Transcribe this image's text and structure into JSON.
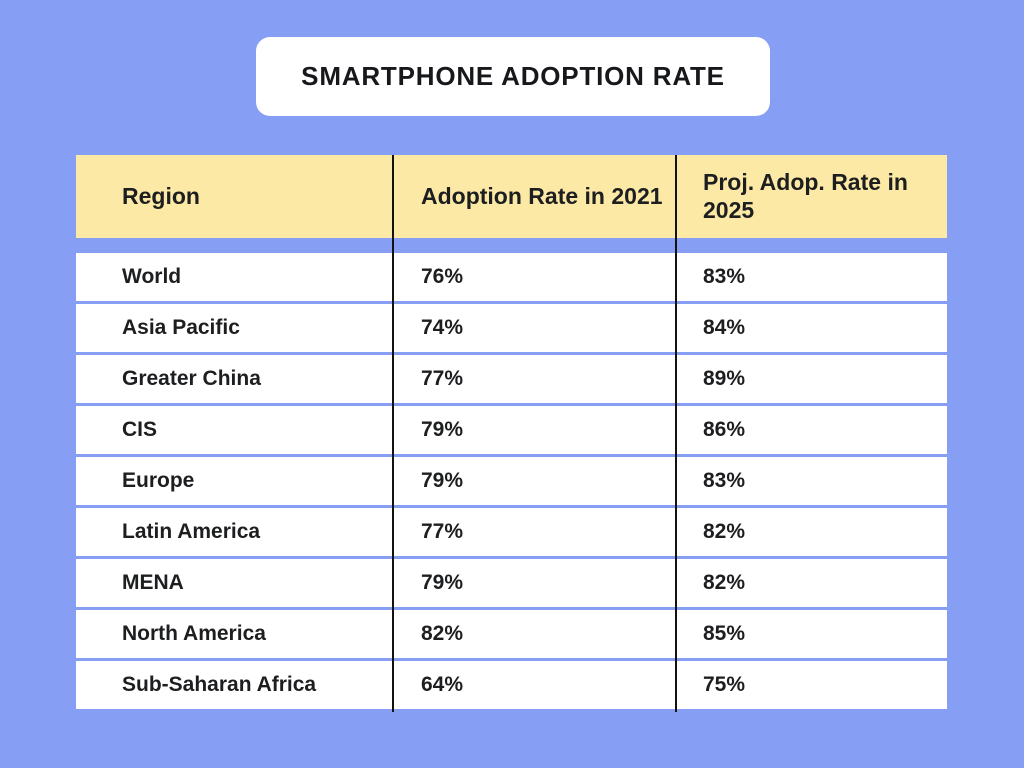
{
  "page": {
    "background_color": "#879EF5",
    "card_color": "#ffffff",
    "header_color": "#FCE9A5",
    "divider_color": "#121212",
    "text_color": "#1d1e20"
  },
  "title": "SMARTPHONE ADOPTION RATE",
  "table": {
    "columns": [
      "Region",
      "Adoption Rate in 2021",
      "Proj. Adop. Rate in 2025"
    ],
    "rows": [
      {
        "region": "World",
        "rate_2021": "76%",
        "rate_2025": "83%"
      },
      {
        "region": "Asia Pacific",
        "rate_2021": "74%",
        "rate_2025": "84%"
      },
      {
        "region": "Greater China",
        "rate_2021": "77%",
        "rate_2025": "89%"
      },
      {
        "region": "CIS",
        "rate_2021": "79%",
        "rate_2025": "86%"
      },
      {
        "region": "Europe",
        "rate_2021": "79%",
        "rate_2025": "83%"
      },
      {
        "region": "Latin America",
        "rate_2021": "77%",
        "rate_2025": "82%"
      },
      {
        "region": "MENA",
        "rate_2021": "79%",
        "rate_2025": "82%"
      },
      {
        "region": "North America",
        "rate_2021": "82%",
        "rate_2025": "85%"
      },
      {
        "region": "Sub-Saharan Africa",
        "rate_2021": "64%",
        "rate_2025": "75%"
      }
    ]
  },
  "chart_data": {
    "type": "table",
    "title": "SMARTPHONE ADOPTION RATE",
    "columns": [
      "Region",
      "Adoption Rate in 2021",
      "Proj. Adop. Rate in 2025"
    ],
    "categories": [
      "World",
      "Asia Pacific",
      "Greater China",
      "CIS",
      "Europe",
      "Latin America",
      "MENA",
      "North America",
      "Sub-Saharan Africa"
    ],
    "series": [
      {
        "name": "Adoption Rate in 2021",
        "values": [
          76,
          74,
          77,
          79,
          79,
          77,
          79,
          82,
          64
        ]
      },
      {
        "name": "Proj. Adop. Rate in 2025",
        "values": [
          83,
          84,
          89,
          86,
          83,
          82,
          82,
          85,
          75
        ]
      }
    ],
    "unit": "%"
  }
}
